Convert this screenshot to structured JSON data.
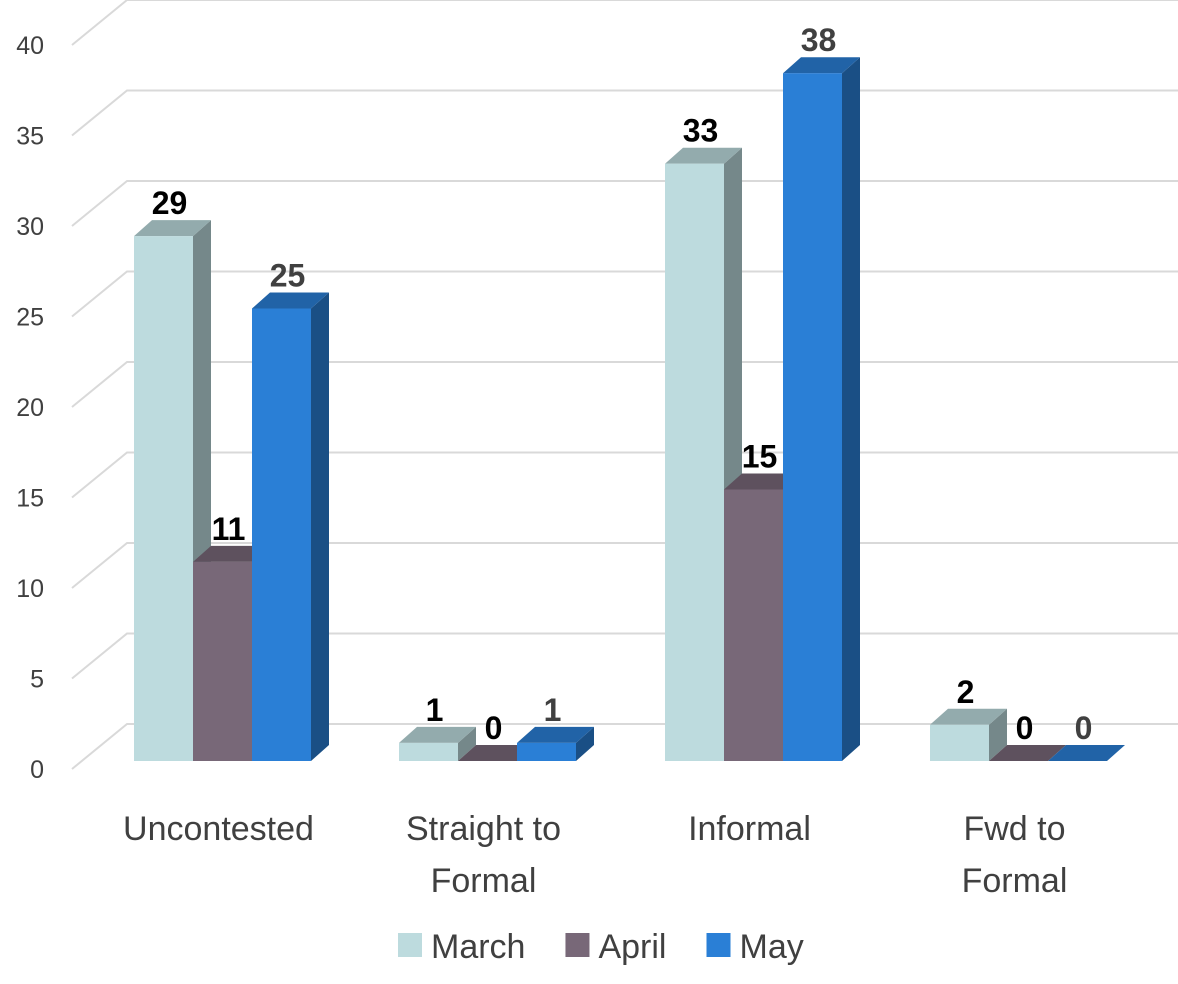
{
  "chart_data": {
    "type": "bar",
    "variant": "3d-clustered-column",
    "categories": [
      [
        "Uncontested"
      ],
      [
        "Straight to",
        "Formal"
      ],
      [
        "Informal"
      ],
      [
        "Fwd to",
        "Formal"
      ]
    ],
    "series": [
      {
        "name": "March",
        "values": [
          29,
          1,
          33,
          2
        ],
        "color": "#bddbde",
        "label_color": "#000000"
      },
      {
        "name": "April",
        "values": [
          11,
          0,
          15,
          0
        ],
        "color": "#786878",
        "label_color": "#000000"
      },
      {
        "name": "May",
        "values": [
          25,
          1,
          38,
          0
        ],
        "color": "#2a7fd6",
        "label_color": "#404040"
      }
    ],
    "ylim": [
      0,
      40
    ],
    "yticks": [
      0,
      5,
      10,
      15,
      20,
      25,
      30,
      35,
      40
    ],
    "title": "",
    "xlabel": "",
    "ylabel": "",
    "grid": true,
    "legend": "bottom"
  }
}
